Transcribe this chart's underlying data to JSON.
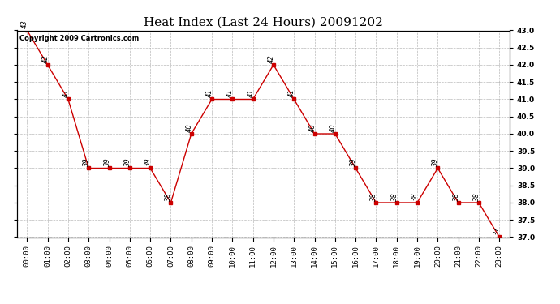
{
  "title": "Heat Index (Last 24 Hours) 20091202",
  "copyright": "Copyright 2009 Cartronics.com",
  "hours": [
    "00:00",
    "01:00",
    "02:00",
    "03:00",
    "04:00",
    "05:00",
    "06:00",
    "07:00",
    "08:00",
    "09:00",
    "10:00",
    "11:00",
    "12:00",
    "13:00",
    "14:00",
    "15:00",
    "16:00",
    "17:00",
    "18:00",
    "19:00",
    "20:00",
    "21:00",
    "22:00",
    "23:00"
  ],
  "values": [
    43,
    42,
    41,
    39,
    39,
    39,
    39,
    38,
    40,
    41,
    41,
    41,
    42,
    41,
    40,
    40,
    39,
    38,
    38,
    38,
    39,
    38,
    38,
    37
  ],
  "ylim": [
    37.0,
    43.0
  ],
  "ytick_step": 0.5,
  "line_color": "#cc0000",
  "marker": "s",
  "marker_size": 2.5,
  "bg_color": "#ffffff",
  "grid_color": "#aaaaaa",
  "title_fontsize": 11,
  "label_fontsize": 6.5,
  "annotation_fontsize": 6,
  "copyright_fontsize": 6
}
